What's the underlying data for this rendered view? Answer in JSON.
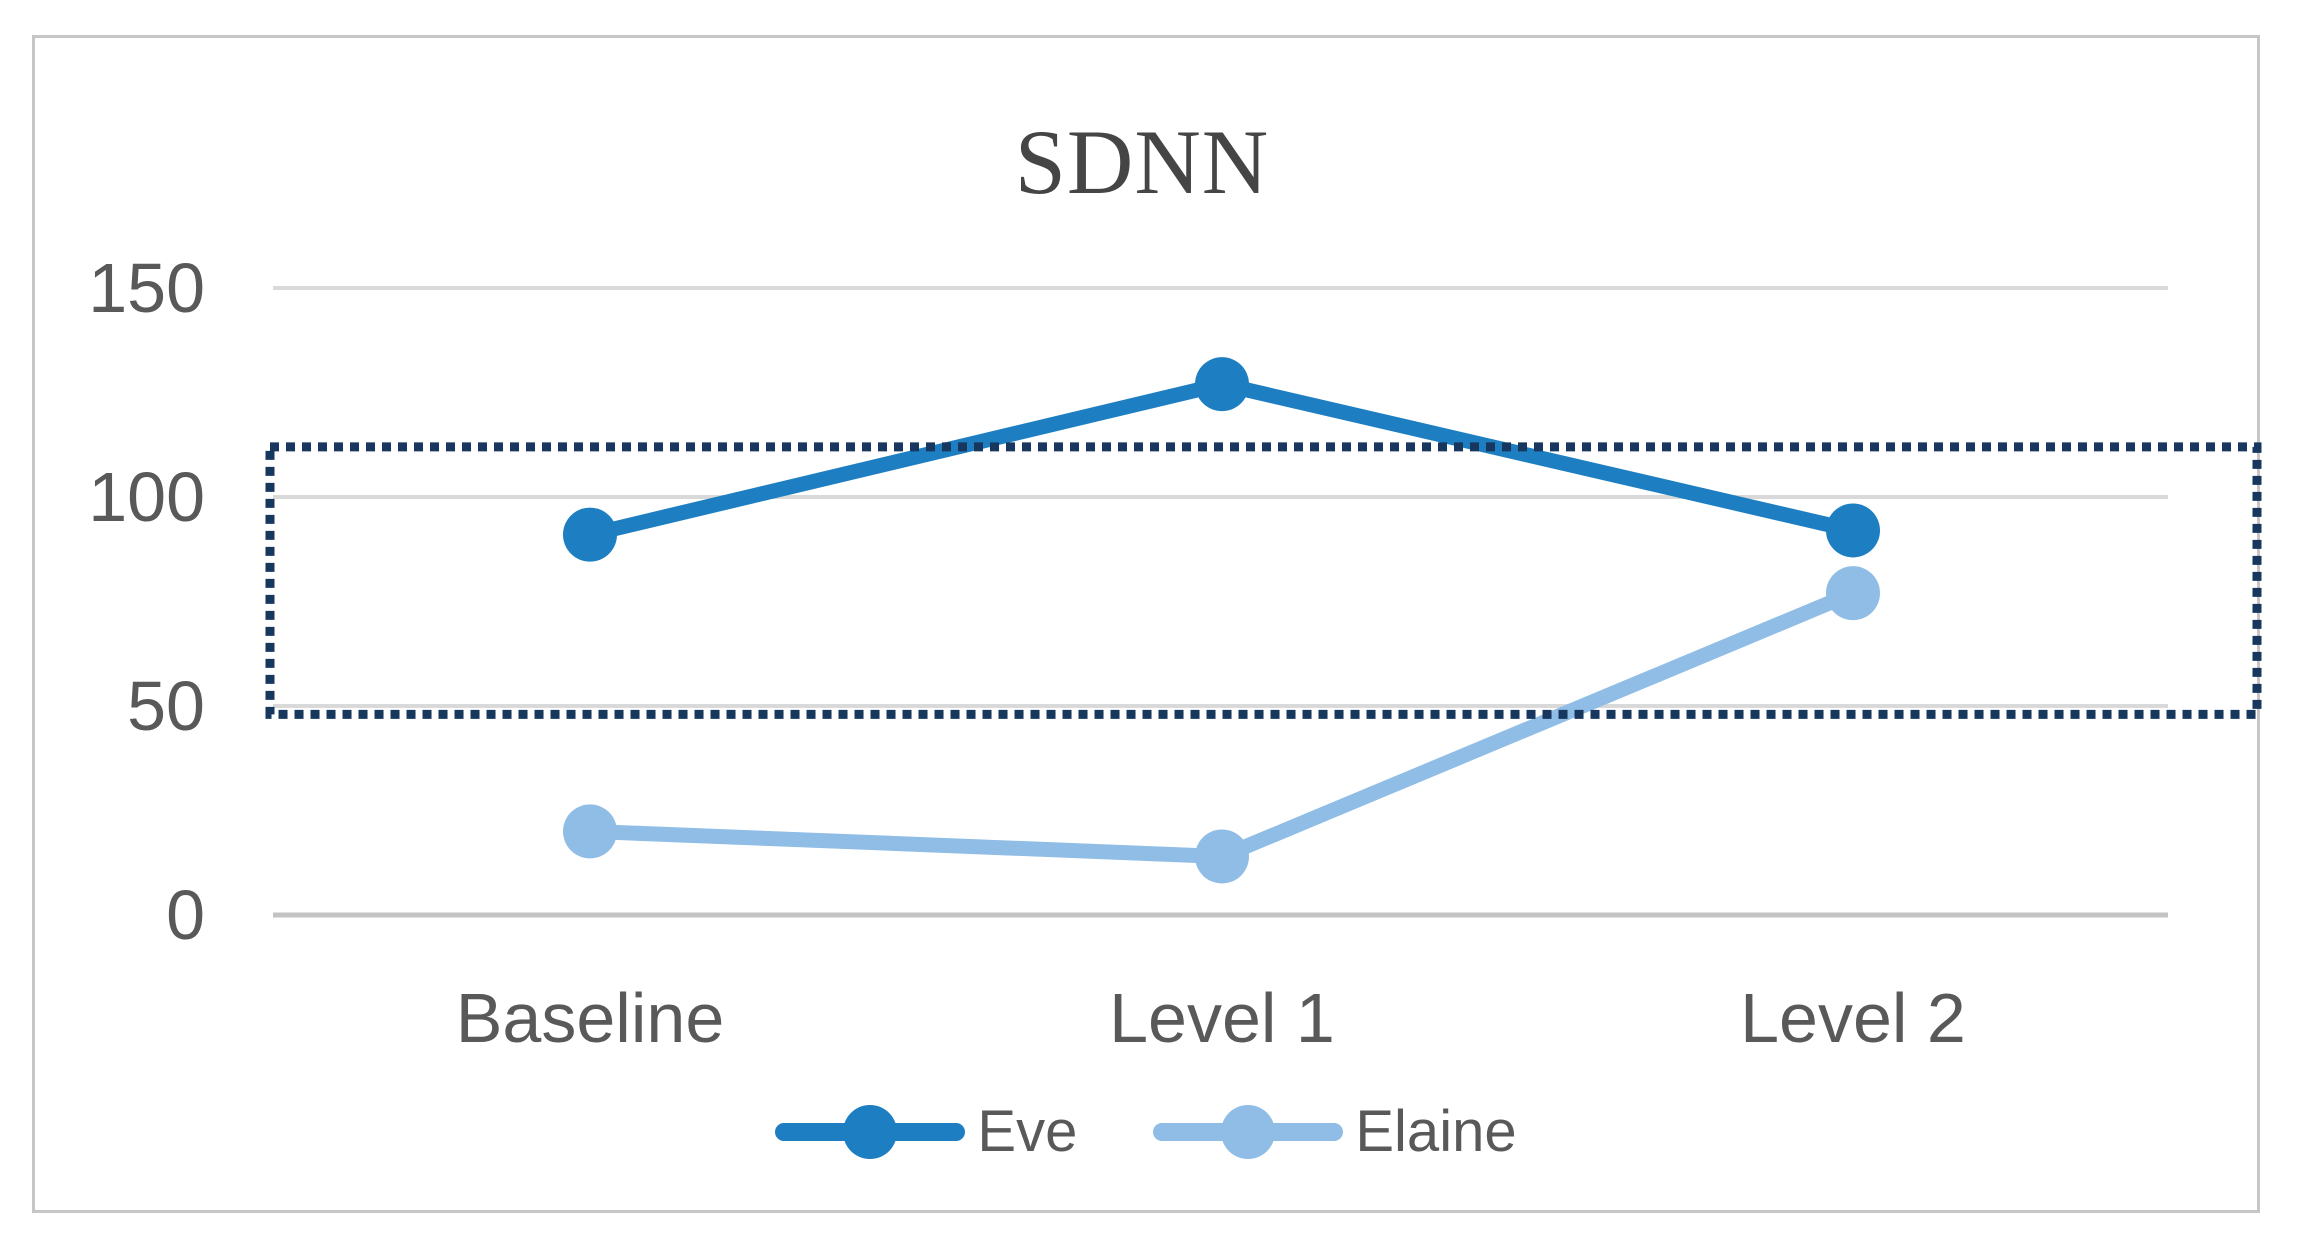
{
  "chart_data": {
    "type": "line",
    "title": "SDNN",
    "categories": [
      "Baseline",
      "Level 1",
      "Level 2"
    ],
    "series": [
      {
        "name": "Eve",
        "color": "#1d7fc1",
        "values": [
          91,
          127,
          92
        ]
      },
      {
        "name": "Elaine",
        "color": "#8fbde6",
        "values": [
          20,
          14,
          77
        ]
      }
    ],
    "yticks": [
      150,
      100,
      50,
      0
    ],
    "ytick_labels": [
      "150",
      "100",
      "50",
      "0"
    ],
    "ylim": [
      0,
      150
    ],
    "grid": "horizontal",
    "legend_position": "bottom",
    "annotation": {
      "type": "dotted-rectangle",
      "y_from": 48,
      "y_to": 112,
      "color": "#17375e"
    }
  },
  "colors": {
    "background": "#ffffff",
    "frame_border": "#c6c6c6",
    "gridline": "#d9d9d9",
    "zero_line": "#c3c3c3",
    "tick_text": "#595959",
    "title_text": "#454545"
  }
}
